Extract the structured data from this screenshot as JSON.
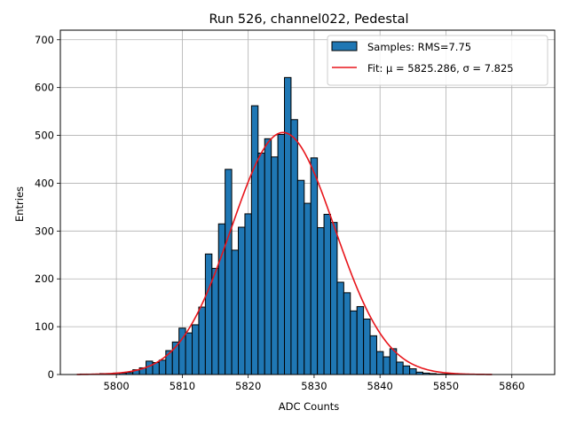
{
  "chart_data": {
    "type": "bar",
    "title": "Run 526, channel022, Pedestal",
    "xlabel": "ADC Counts",
    "ylabel": "Entries",
    "xlim": [
      5791.5,
      5866.5
    ],
    "ylim": [
      0,
      720
    ],
    "xticks": [
      5800,
      5810,
      5820,
      5830,
      5840,
      5850,
      5860
    ],
    "yticks": [
      0,
      100,
      200,
      300,
      400,
      500,
      600,
      700
    ],
    "grid": true,
    "legend_position": "top-right",
    "bin_width": 1,
    "series": [
      {
        "name": "Samples: RMS=7.75",
        "type": "histogram",
        "color": "#1f77b4",
        "edgecolor": "#000000",
        "x": [
          5795,
          5796,
          5797,
          5798,
          5799,
          5800,
          5801,
          5802,
          5803,
          5804,
          5805,
          5806,
          5807,
          5808,
          5809,
          5810,
          5811,
          5812,
          5813,
          5814,
          5815,
          5816,
          5817,
          5818,
          5819,
          5820,
          5821,
          5822,
          5823,
          5824,
          5825,
          5826,
          5827,
          5828,
          5829,
          5830,
          5831,
          5832,
          5833,
          5834,
          5835,
          5836,
          5837,
          5838,
          5839,
          5840,
          5841,
          5842,
          5843,
          5844,
          5845,
          5846,
          5847,
          5848,
          5849,
          5850,
          5851,
          5852,
          5853,
          5854,
          5855,
          5856,
          5857
        ],
        "values": [
          1,
          1,
          1,
          2,
          2,
          3,
          3,
          4,
          10,
          14,
          28,
          25,
          30,
          50,
          68,
          97,
          87,
          104,
          141,
          252,
          222,
          315,
          429,
          260,
          308,
          336,
          562,
          463,
          493,
          455,
          502,
          621,
          533,
          406,
          358,
          453,
          307,
          335,
          318,
          193,
          171,
          133,
          142,
          116,
          81,
          48,
          37,
          54,
          26,
          18,
          12,
          5,
          3,
          2,
          1,
          1,
          1,
          0,
          0,
          0,
          0,
          0,
          0
        ]
      },
      {
        "name": "Fit: μ = 5825.286, σ = 7.825",
        "type": "gaussian",
        "color": "#e8151b",
        "mu": 5825.286,
        "sigma": 7.825,
        "amplitude": 506,
        "x_range": [
          5794,
          5857
        ]
      }
    ]
  }
}
